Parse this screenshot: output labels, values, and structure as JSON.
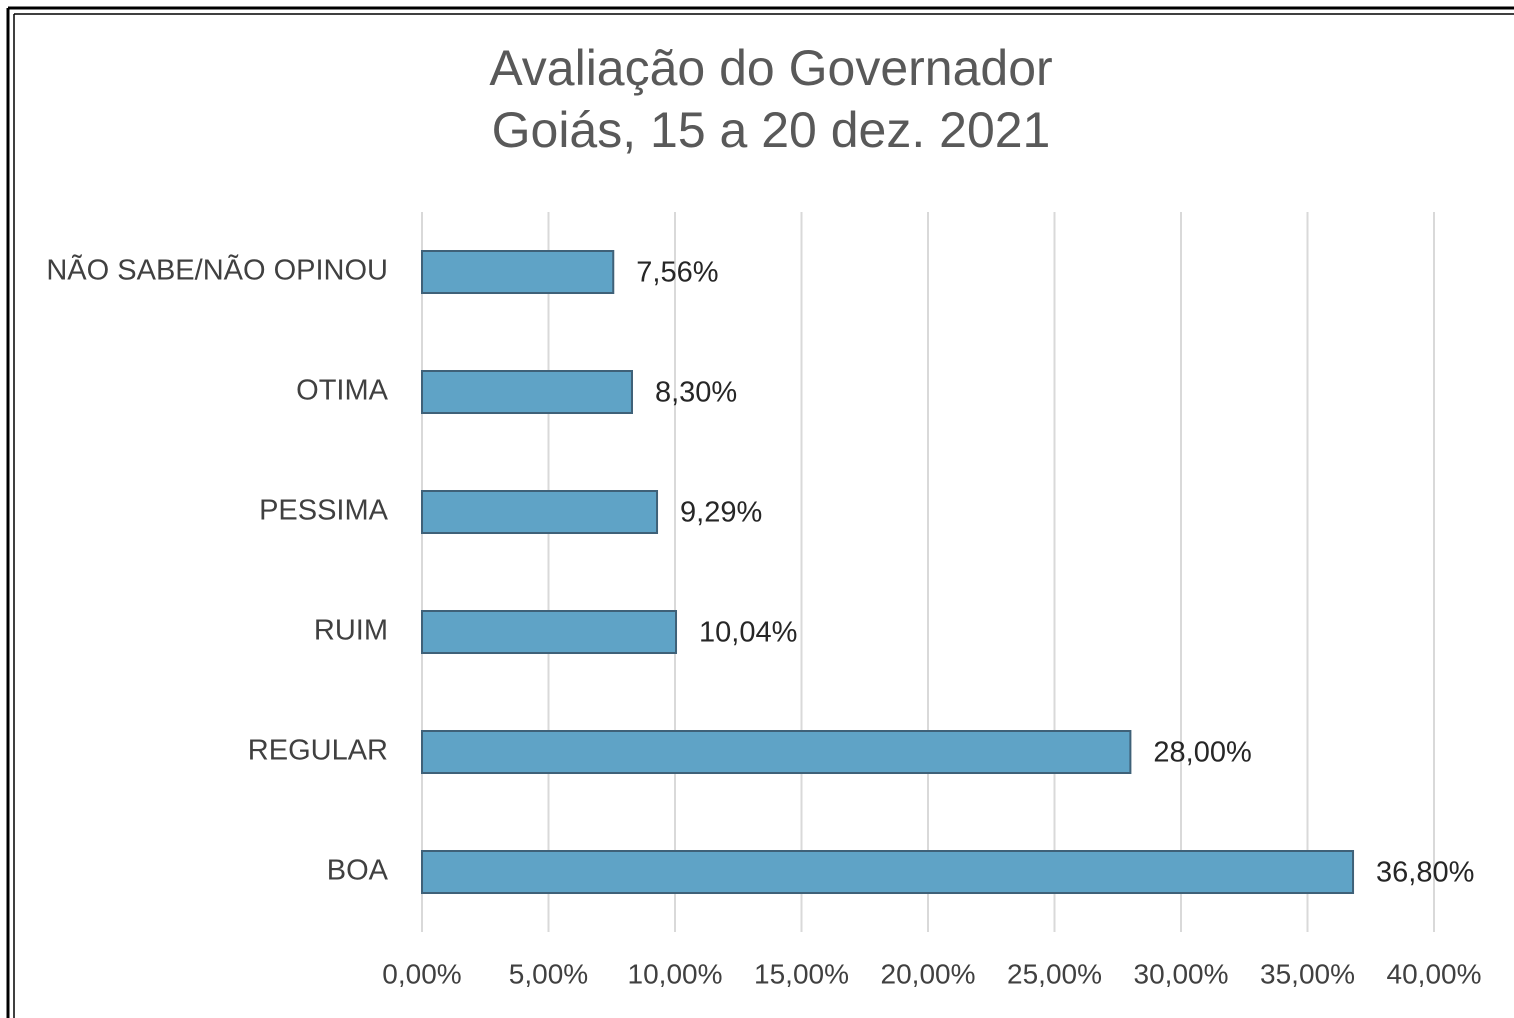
{
  "chart_data": {
    "type": "bar",
    "orientation": "horizontal",
    "title": "Avaliação do Governador",
    "subtitle": "Goiás, 15 a 20 dez. 2021",
    "categories": [
      "NÃO SABE/NÃO OPINOU",
      "OTIMA",
      "PESSIMA",
      "RUIM",
      "REGULAR",
      "BOA"
    ],
    "values": [
      7.56,
      8.3,
      9.29,
      10.04,
      28.0,
      36.8
    ],
    "value_labels": [
      "7,56%",
      "8,30%",
      "9,29%",
      "10,04%",
      "28,00%",
      "36,80%"
    ],
    "color": "#5fa3c6",
    "xlim": [
      0,
      40
    ],
    "xticks": [
      {
        "value": 0,
        "label": "0,00%"
      },
      {
        "value": 5,
        "label": "5,00%"
      },
      {
        "value": 10,
        "label": "10,00%"
      },
      {
        "value": 15,
        "label": "15,00%"
      },
      {
        "value": 20,
        "label": "20,00%"
      },
      {
        "value": 25,
        "label": "25,00%"
      },
      {
        "value": 30,
        "label": "30,00%"
      },
      {
        "value": 35,
        "label": "35,00%"
      },
      {
        "value": 40,
        "label": "40,00%"
      }
    ],
    "grid": true
  }
}
